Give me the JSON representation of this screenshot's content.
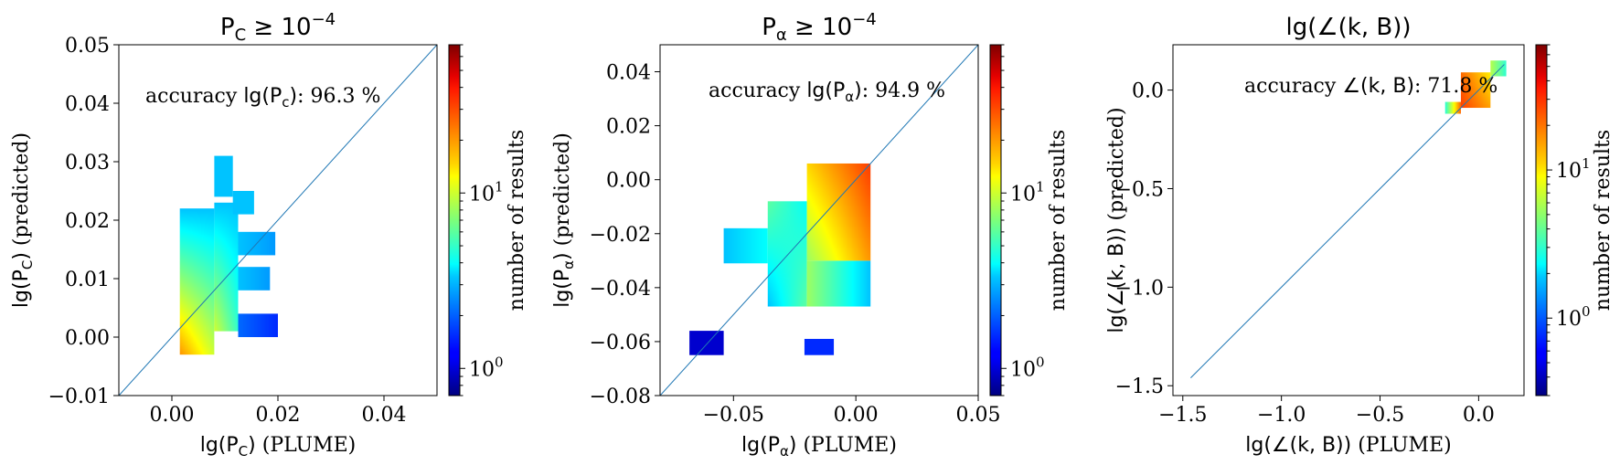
{
  "figure": {
    "colormap": "jet",
    "diagonal_color": "#1f77b4"
  },
  "chart_data": [
    {
      "type": "heatmap",
      "title_main": "P",
      "title_sub": "C",
      "title_rel": " ≥ 10",
      "title_exp": "−4",
      "xlabel_math": "lg(P",
      "xlabel_sub": "C",
      "xlabel_close": ")",
      "xlabel_rest": " (PLUME)",
      "ylabel_math": "lg(P",
      "ylabel_sub": "C",
      "ylabel_close": ")",
      "ylabel_rest": " (predicted)",
      "annotation_pre": "accuracy ",
      "annotation_math": "lg(P",
      "annotation_sub": "c",
      "annotation_close": ")",
      "annotation_value": ": 96.3 %",
      "xlim": [
        -0.01,
        0.05
      ],
      "ylim": [
        -0.01,
        0.05
      ],
      "xticks": [
        0.0,
        0.02,
        0.04
      ],
      "xtick_labels": [
        "0.00",
        "0.02",
        "0.04"
      ],
      "yticks": [
        -0.01,
        0.0,
        0.01,
        0.02,
        0.03,
        0.04,
        0.05
      ],
      "ytick_labels": [
        "−0.01",
        "0.00",
        "0.01",
        "0.02",
        "0.03",
        "0.04",
        "0.05"
      ],
      "diagonal": [
        [
          -0.01,
          -0.01
        ],
        [
          0.05,
          0.05
        ]
      ],
      "colorbar": {
        "label": "number of results",
        "scale": "log",
        "range": [
          0.7,
          70
        ],
        "ticks": [
          1,
          10
        ],
        "tick_labels": [
          {
            "base": "10",
            "exp": "0"
          },
          {
            "base": "10",
            "exp": "1"
          }
        ]
      },
      "regions": [
        {
          "x": [
            0.0015,
            0.008,
            0.008,
            0.0015
          ],
          "y": [
            -0.003,
            -0.003,
            0.022,
            0.022
          ],
          "values": [
            20,
            10,
            3,
            3
          ]
        },
        {
          "x": [
            0.008,
            0.0125,
            0.0125,
            0.008
          ],
          "y": [
            0.001,
            0.001,
            0.023,
            0.023
          ],
          "values": [
            10,
            5,
            3,
            3
          ]
        },
        {
          "x": [
            0.008,
            0.0115,
            0.0115,
            0.008
          ],
          "y": [
            0.024,
            0.024,
            0.031,
            0.031
          ],
          "values": [
            3,
            3,
            3,
            3
          ]
        },
        {
          "x": [
            0.0115,
            0.0155,
            0.0155,
            0.0115
          ],
          "y": [
            0.021,
            0.021,
            0.025,
            0.025
          ],
          "values": [
            3,
            3,
            3,
            3
          ]
        },
        {
          "x": [
            0.0125,
            0.02,
            0.02,
            0.0125
          ],
          "y": [
            0.0,
            0.0,
            0.004,
            0.004
          ],
          "values": [
            2,
            1.5,
            1.5,
            2
          ]
        },
        {
          "x": [
            0.0125,
            0.0185,
            0.0185,
            0.0125
          ],
          "y": [
            0.008,
            0.008,
            0.012,
            0.012
          ],
          "values": [
            3,
            2.5,
            2.5,
            3
          ]
        },
        {
          "x": [
            0.0125,
            0.0195,
            0.0195,
            0.0125
          ],
          "y": [
            0.014,
            0.014,
            0.018,
            0.018
          ],
          "values": [
            3,
            2.5,
            2.5,
            3
          ]
        }
      ]
    },
    {
      "type": "heatmap",
      "title_main": "P",
      "title_sub": "α",
      "title_rel": " ≥ 10",
      "title_exp": "−4",
      "xlabel_math": "lg(P",
      "xlabel_sub": "α",
      "xlabel_close": ")",
      "xlabel_rest": " (PLUME)",
      "ylabel_math": "lg(P",
      "ylabel_sub": "α",
      "ylabel_close": ")",
      "ylabel_rest": " (predicted)",
      "annotation_pre": "accuracy ",
      "annotation_math": "lg(P",
      "annotation_sub": "α",
      "annotation_close": ")",
      "annotation_value": ": 94.9 %",
      "xlim": [
        -0.08,
        0.05
      ],
      "ylim": [
        -0.08,
        0.05
      ],
      "xticks": [
        -0.05,
        0.0,
        0.05
      ],
      "xtick_labels": [
        "−0.05",
        "0.00",
        "0.05"
      ],
      "yticks": [
        -0.08,
        -0.06,
        -0.04,
        -0.02,
        0.0,
        0.02,
        0.04
      ],
      "ytick_labels": [
        "−0.08",
        "−0.06",
        "−0.04",
        "−0.02",
        "0.00",
        "0.02",
        "0.04"
      ],
      "diagonal": [
        [
          -0.08,
          -0.08
        ],
        [
          0.05,
          0.05
        ]
      ],
      "colorbar": {
        "label": "number of results",
        "scale": "log",
        "range": [
          0.7,
          70
        ],
        "ticks": [
          1,
          10
        ],
        "tick_labels": [
          {
            "base": "10",
            "exp": "0"
          },
          {
            "base": "10",
            "exp": "1"
          }
        ]
      },
      "regions": [
        {
          "x": [
            -0.054,
            -0.036,
            -0.036,
            -0.054
          ],
          "y": [
            -0.031,
            -0.031,
            -0.018,
            -0.018
          ],
          "values": [
            3,
            4,
            4,
            3
          ]
        },
        {
          "x": [
            -0.036,
            -0.02,
            -0.02,
            -0.036
          ],
          "y": [
            -0.047,
            -0.047,
            -0.008,
            -0.008
          ],
          "values": [
            3,
            6,
            4,
            6
          ]
        },
        {
          "x": [
            -0.02,
            0.006,
            0.006,
            -0.02
          ],
          "y": [
            -0.047,
            -0.047,
            -0.03,
            -0.03
          ],
          "values": [
            8,
            3,
            3,
            8
          ]
        },
        {
          "x": [
            -0.02,
            0.006,
            0.006,
            -0.02
          ],
          "y": [
            -0.03,
            -0.03,
            0.006,
            0.006
          ],
          "values": [
            8,
            20,
            30,
            15
          ]
        },
        {
          "x": [
            -0.068,
            -0.054,
            -0.054,
            -0.068
          ],
          "y": [
            -0.065,
            -0.065,
            -0.056,
            -0.056
          ],
          "values": [
            1,
            1,
            1,
            1
          ]
        },
        {
          "x": [
            -0.021,
            -0.009,
            -0.009,
            -0.021
          ],
          "y": [
            -0.065,
            -0.065,
            -0.059,
            -0.059
          ],
          "values": [
            1.5,
            1.5,
            1.5,
            1.5
          ]
        }
      ]
    },
    {
      "type": "heatmap",
      "title_main": "lg(∠(k, B))",
      "title_sub": "",
      "title_rel": "",
      "title_exp": "",
      "xlabel_math": "lg(∠(k, B))",
      "xlabel_sub": "",
      "xlabel_close": "",
      "xlabel_rest": " (PLUME)",
      "ylabel_math": "lg(∠(k, B))",
      "ylabel_sub": "",
      "ylabel_close": "",
      "ylabel_rest": " (predicted)",
      "annotation_pre": "accuracy ",
      "annotation_math": "∠(k, B)",
      "annotation_sub": "",
      "annotation_close": "",
      "annotation_value": ": 71.8 %",
      "xlim": [
        -1.55,
        0.23
      ],
      "ylim": [
        -1.55,
        0.23
      ],
      "xticks": [
        -1.5,
        -1.0,
        -0.5,
        0.0
      ],
      "xtick_labels": [
        "−1.5",
        "−1.0",
        "−0.5",
        "0.0"
      ],
      "yticks": [
        -1.5,
        -1.0,
        -0.5,
        0.0
      ],
      "ytick_labels": [
        "−1.5",
        "−1.0",
        "−0.5",
        "0.0"
      ],
      "diagonal": [
        [
          -1.46,
          -1.46
        ],
        [
          0.13,
          0.13
        ]
      ],
      "colorbar": {
        "label": "number of results",
        "scale": "log",
        "range": [
          0.3,
          70
        ],
        "ticks": [
          1,
          10
        ],
        "tick_labels": [
          {
            "base": "10",
            "exp": "0"
          },
          {
            "base": "10",
            "exp": "1"
          }
        ]
      },
      "regions": [
        {
          "x": [
            -0.17,
            -0.09,
            -0.09,
            -0.17
          ],
          "y": [
            -0.12,
            -0.12,
            -0.06,
            -0.06
          ],
          "values": [
            3,
            20,
            20,
            3
          ]
        },
        {
          "x": [
            -0.09,
            0.06,
            0.06,
            -0.09
          ],
          "y": [
            -0.09,
            -0.09,
            0.09,
            0.09
          ],
          "values": [
            25,
            15,
            10,
            20
          ]
        },
        {
          "x": [
            0.06,
            0.14,
            0.14,
            0.06
          ],
          "y": [
            0.07,
            0.07,
            0.15,
            0.15
          ],
          "values": [
            6,
            3,
            3,
            6
          ]
        }
      ]
    }
  ]
}
